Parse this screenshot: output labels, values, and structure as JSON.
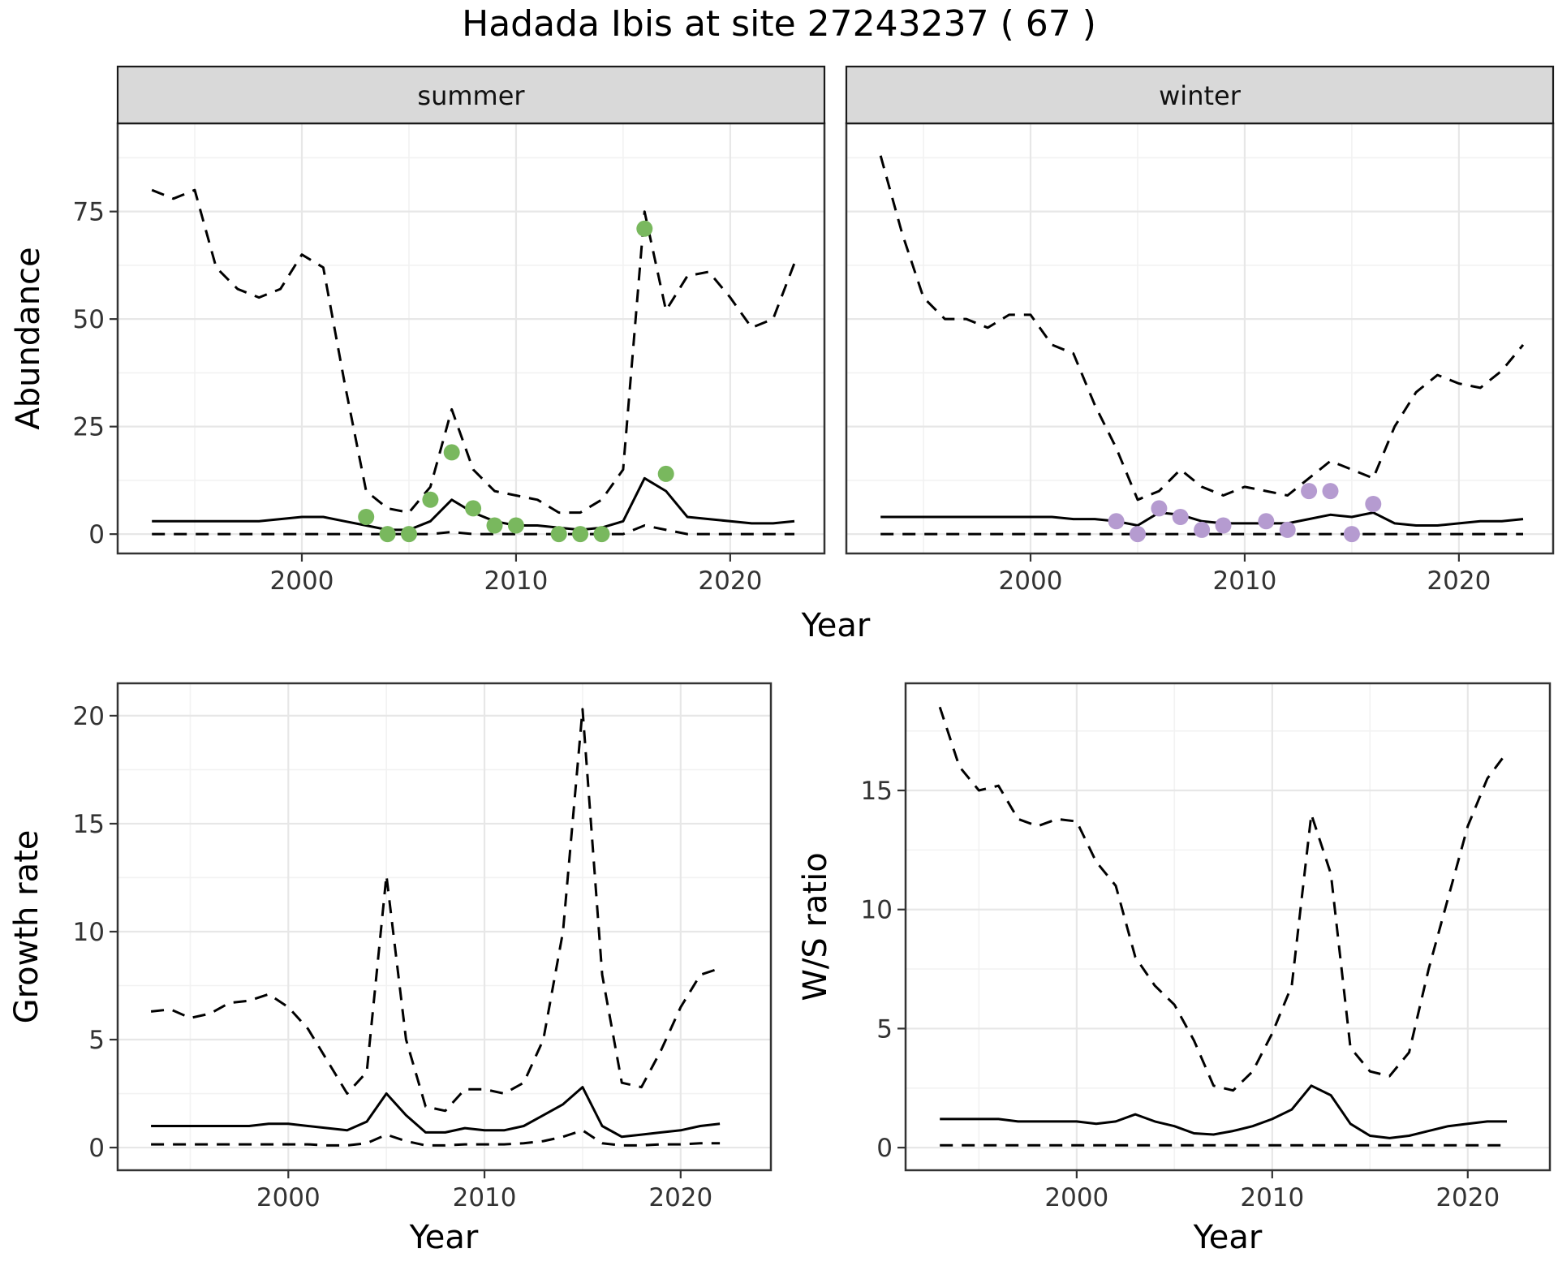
{
  "title": "Hadada Ibis at site 27243237 ( 67 )",
  "meta": {
    "species": "Hadada Ibis",
    "site_id": "27243237",
    "count_label": "67"
  },
  "colors": {
    "line": "#000000",
    "summer_points": "#79b85e",
    "winter_points": "#b59bd0",
    "strip_bg": "#d9d9d9",
    "panel_border": "#333333"
  },
  "chart_data": [
    {
      "id": "abundance-summer",
      "type": "line",
      "facet": "summer",
      "xlabel": "Year",
      "ylabel": "Abundance",
      "xlim": [
        1991.4,
        2024.4
      ],
      "ylim": [
        -4.5,
        95.5
      ],
      "xticks": [
        2000,
        2010,
        2020
      ],
      "yticks": [
        0,
        25,
        50,
        75
      ],
      "x": [
        1993,
        1994,
        1995,
        1996,
        1997,
        1998,
        1999,
        2000,
        2001,
        2002,
        2003,
        2004,
        2005,
        2006,
        2007,
        2008,
        2009,
        2010,
        2011,
        2012,
        2013,
        2014,
        2015,
        2016,
        2017,
        2018,
        2019,
        2020,
        2021,
        2022,
        2023
      ],
      "series": [
        {
          "name": "upper-ci",
          "style": "dashed",
          "values": [
            80,
            78,
            80,
            62,
            57,
            55,
            57,
            65,
            62,
            35,
            10,
            6,
            5,
            11,
            29,
            15,
            10,
            9,
            8,
            5,
            5,
            8,
            15,
            75,
            52,
            60,
            61,
            55,
            48,
            50,
            63
          ]
        },
        {
          "name": "median",
          "style": "solid",
          "values": [
            3,
            3,
            3,
            3,
            3,
            3,
            3.5,
            4,
            4,
            3,
            2,
            1,
            1,
            3,
            8,
            5,
            3,
            2,
            2,
            1.5,
            1,
            1.5,
            3,
            13,
            10,
            4,
            3.5,
            3,
            2.5,
            2.5,
            3
          ]
        },
        {
          "name": "lower-ci",
          "style": "dashed",
          "values": [
            0,
            0,
            0,
            0,
            0,
            0,
            0,
            0,
            0,
            0,
            0,
            0,
            0,
            0,
            0.5,
            0,
            0,
            0,
            0,
            0,
            0,
            0,
            0,
            2,
            1,
            0,
            0,
            0,
            0,
            0,
            0
          ]
        }
      ],
      "points": {
        "color": "#79b85e",
        "x": [
          2003,
          2004,
          2005,
          2006,
          2007,
          2008,
          2009,
          2010,
          2012,
          2013,
          2014,
          2016,
          2017
        ],
        "y": [
          4,
          0,
          0,
          8,
          19,
          6,
          2,
          2,
          0,
          0,
          0,
          71,
          14
        ]
      }
    },
    {
      "id": "abundance-winter",
      "type": "line",
      "facet": "winter",
      "xlabel": "Year",
      "ylabel": "Abundance",
      "xlim": [
        1991.4,
        2024.4
      ],
      "ylim": [
        -4.5,
        95.5
      ],
      "xticks": [
        2000,
        2010,
        2020
      ],
      "yticks": [
        0,
        25,
        50,
        75
      ],
      "x": [
        1993,
        1994,
        1995,
        1996,
        1997,
        1998,
        1999,
        2000,
        2001,
        2002,
        2003,
        2004,
        2005,
        2006,
        2007,
        2008,
        2009,
        2010,
        2011,
        2012,
        2013,
        2014,
        2015,
        2016,
        2017,
        2018,
        2019,
        2020,
        2021,
        2022,
        2023
      ],
      "series": [
        {
          "name": "upper-ci",
          "style": "dashed",
          "values": [
            88,
            70,
            55,
            50,
            50,
            48,
            51,
            51,
            44,
            42,
            30,
            20,
            8,
            10,
            15,
            11,
            9,
            11,
            10,
            9,
            13,
            17,
            15,
            13,
            25,
            33,
            37,
            35,
            34,
            38,
            44
          ]
        },
        {
          "name": "median",
          "style": "solid",
          "values": [
            4,
            4,
            4,
            4,
            4,
            4,
            4,
            4,
            4,
            3.5,
            3.5,
            3,
            2,
            5,
            4.5,
            3,
            2.5,
            2.5,
            2.5,
            2.5,
            3.5,
            4.5,
            4,
            5,
            2.5,
            2,
            2,
            2.5,
            3,
            3,
            3.5
          ]
        },
        {
          "name": "lower-ci",
          "style": "dashed",
          "values": [
            0,
            0,
            0,
            0,
            0,
            0,
            0,
            0,
            0,
            0,
            0,
            0,
            0,
            0,
            0,
            0,
            0,
            0,
            0,
            0,
            0,
            0,
            0,
            0,
            0,
            0,
            0,
            0,
            0,
            0,
            0
          ]
        }
      ],
      "points": {
        "color": "#b59bd0",
        "x": [
          2004,
          2005,
          2006,
          2007,
          2008,
          2009,
          2011,
          2012,
          2013,
          2014,
          2015,
          2016
        ],
        "y": [
          3,
          0,
          6,
          4,
          1,
          2,
          3,
          1,
          10,
          10,
          0,
          7
        ]
      }
    },
    {
      "id": "growth-rate",
      "type": "line",
      "facet": "",
      "xlabel": "Year",
      "ylabel": "Growth rate",
      "xlim": [
        1991.3,
        2024.6
      ],
      "ylim": [
        -1.05,
        21.5
      ],
      "xticks": [
        2000,
        2010,
        2020
      ],
      "yticks": [
        0,
        5,
        10,
        15,
        20
      ],
      "x": [
        1993,
        1994,
        1995,
        1996,
        1997,
        1998,
        1999,
        2000,
        2001,
        2002,
        2003,
        2004,
        2005,
        2006,
        2007,
        2008,
        2009,
        2010,
        2011,
        2012,
        2013,
        2014,
        2015,
        2016,
        2017,
        2018,
        2019,
        2020,
        2021,
        2022
      ],
      "series": [
        {
          "name": "upper-ci",
          "style": "dashed",
          "values": [
            6.3,
            6.4,
            6.0,
            6.2,
            6.7,
            6.8,
            7.1,
            6.5,
            5.5,
            4.0,
            2.5,
            3.5,
            12.6,
            5.0,
            1.9,
            1.7,
            2.7,
            2.7,
            2.5,
            3.0,
            5.0,
            10.0,
            20.3,
            8.0,
            3.0,
            2.8,
            4.5,
            6.5,
            8.0,
            8.3
          ]
        },
        {
          "name": "median",
          "style": "solid",
          "values": [
            1.0,
            1.0,
            1.0,
            1.0,
            1.0,
            1.0,
            1.1,
            1.1,
            1.0,
            0.9,
            0.8,
            1.2,
            2.5,
            1.5,
            0.7,
            0.7,
            0.9,
            0.8,
            0.8,
            1.0,
            1.5,
            2.0,
            2.8,
            1.0,
            0.5,
            0.6,
            0.7,
            0.8,
            1.0,
            1.1
          ]
        },
        {
          "name": "lower-ci",
          "style": "dashed",
          "values": [
            0.15,
            0.15,
            0.15,
            0.15,
            0.15,
            0.15,
            0.15,
            0.15,
            0.15,
            0.1,
            0.1,
            0.2,
            0.6,
            0.3,
            0.1,
            0.1,
            0.15,
            0.15,
            0.15,
            0.2,
            0.3,
            0.5,
            0.8,
            0.2,
            0.1,
            0.1,
            0.15,
            0.15,
            0.2,
            0.2
          ]
        }
      ],
      "points": null
    },
    {
      "id": "ws-ratio",
      "type": "line",
      "facet": "",
      "xlabel": "Year",
      "ylabel": "W/S ratio",
      "xlim": [
        1991.25,
        2024.2
      ],
      "ylim": [
        -0.95,
        19.5
      ],
      "xticks": [
        2000,
        2010,
        2020
      ],
      "yticks": [
        0,
        5,
        10,
        15
      ],
      "x": [
        1993,
        1994,
        1995,
        1996,
        1997,
        1998,
        1999,
        2000,
        2001,
        2002,
        2003,
        2004,
        2005,
        2006,
        2007,
        2008,
        2009,
        2010,
        2011,
        2012,
        2013,
        2014,
        2015,
        2016,
        2017,
        2018,
        2019,
        2020,
        2021,
        2022
      ],
      "series": [
        {
          "name": "upper-ci",
          "style": "dashed",
          "values": [
            18.5,
            16.0,
            15.0,
            15.2,
            13.8,
            13.5,
            13.8,
            13.7,
            12.0,
            11.0,
            8.0,
            6.8,
            6.0,
            4.5,
            2.6,
            2.4,
            3.2,
            4.8,
            6.8,
            14.0,
            11.5,
            4.2,
            3.2,
            3.0,
            4.0,
            7.5,
            10.5,
            13.5,
            15.5,
            16.6
          ]
        },
        {
          "name": "median",
          "style": "solid",
          "values": [
            1.2,
            1.2,
            1.2,
            1.2,
            1.1,
            1.1,
            1.1,
            1.1,
            1.0,
            1.1,
            1.4,
            1.1,
            0.9,
            0.6,
            0.55,
            0.7,
            0.9,
            1.2,
            1.6,
            2.6,
            2.2,
            1.0,
            0.5,
            0.4,
            0.5,
            0.7,
            0.9,
            1.0,
            1.1,
            1.1
          ]
        },
        {
          "name": "lower-ci",
          "style": "dashed",
          "values": [
            0.1,
            0.1,
            0.1,
            0.1,
            0.1,
            0.1,
            0.1,
            0.1,
            0.1,
            0.1,
            0.1,
            0.1,
            0.1,
            0.1,
            0.1,
            0.1,
            0.1,
            0.1,
            0.1,
            0.1,
            0.1,
            0.1,
            0.1,
            0.1,
            0.1,
            0.1,
            0.1,
            0.1,
            0.1,
            0.1
          ]
        }
      ],
      "points": null
    }
  ]
}
